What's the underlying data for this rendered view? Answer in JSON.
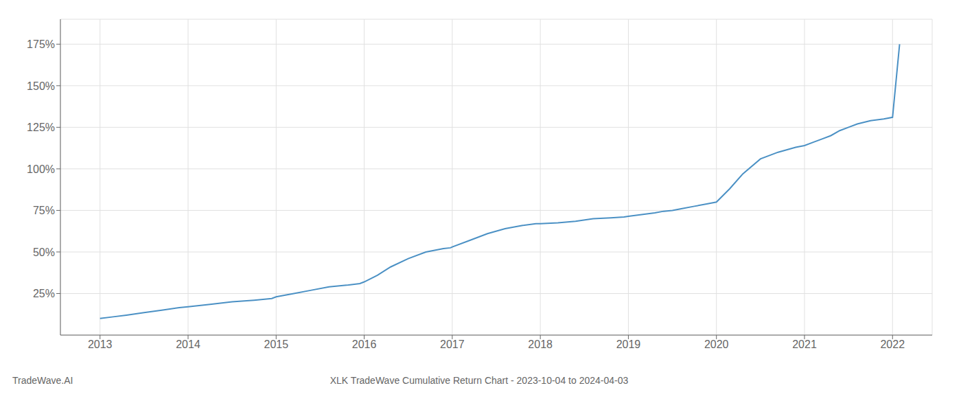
{
  "chart_data": {
    "type": "line",
    "title": "XLK TradeWave Cumulative Return Chart - 2023-10-04 to 2024-04-03",
    "annotations": [
      "TradeWave.AI"
    ],
    "x": [
      2013.0,
      2013.15,
      2013.3,
      2013.5,
      2013.7,
      2013.9,
      2014.0,
      2014.25,
      2014.5,
      2014.75,
      2014.95,
      2015.0,
      2015.2,
      2015.4,
      2015.6,
      2015.8,
      2015.95,
      2016.0,
      2016.15,
      2016.3,
      2016.5,
      2016.7,
      2016.9,
      2016.98,
      2017.0,
      2017.2,
      2017.4,
      2017.6,
      2017.8,
      2017.95,
      2018.0,
      2018.2,
      2018.4,
      2018.6,
      2018.8,
      2018.95,
      2019.0,
      2019.15,
      2019.3,
      2019.4,
      2019.5,
      2019.6,
      2019.75,
      2019.9,
      2020.0,
      2020.15,
      2020.3,
      2020.5,
      2020.7,
      2020.9,
      2021.0,
      2021.1,
      2021.2,
      2021.3,
      2021.4,
      2021.5,
      2021.6,
      2021.75,
      2021.9,
      2022.0,
      2022.08
    ],
    "values": [
      10,
      11,
      12,
      13.5,
      15,
      16.5,
      17,
      18.5,
      20,
      21,
      22,
      23,
      25,
      27,
      29,
      30,
      31,
      32,
      36,
      41,
      46,
      50,
      52,
      52.5,
      53,
      57,
      61,
      64,
      66,
      67,
      67,
      67.5,
      68.5,
      70,
      70.5,
      71,
      71.5,
      72.5,
      73.5,
      74.5,
      75,
      76,
      77.5,
      79,
      80,
      88,
      97,
      106,
      110,
      113,
      114,
      116,
      118,
      120,
      123,
      125,
      127,
      129,
      130,
      131,
      175
    ],
    "color": "#4a90c4",
    "xlim": [
      2012.55,
      2022.45
    ],
    "xticks": [
      2013,
      2014,
      2015,
      2016,
      2017,
      2018,
      2019,
      2020,
      2021,
      2022
    ],
    "ylim": [
      0,
      190
    ],
    "yticks": [
      {
        "value": 25,
        "label": "25%"
      },
      {
        "value": 50,
        "label": "50%"
      },
      {
        "value": 75,
        "label": "75%"
      },
      {
        "value": 100,
        "label": "100%"
      },
      {
        "value": 125,
        "label": "125%"
      },
      {
        "value": 150,
        "label": "150%"
      },
      {
        "value": 175,
        "label": "175%"
      }
    ],
    "grid": true
  }
}
